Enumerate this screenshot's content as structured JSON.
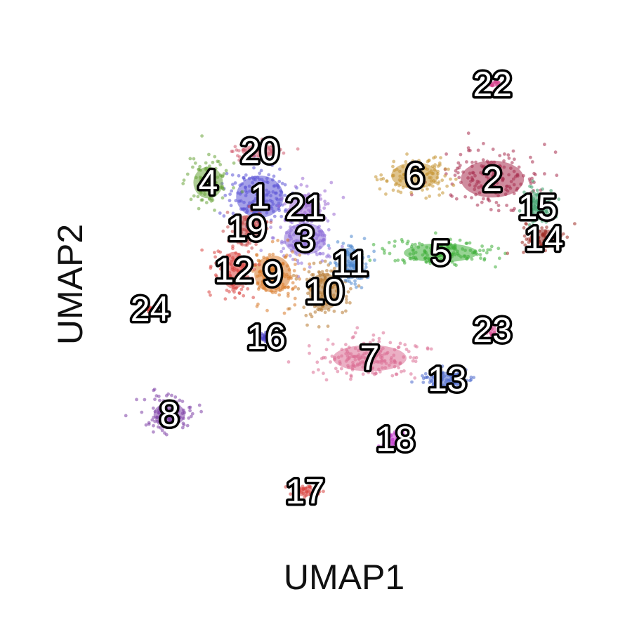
{
  "chart_data": {
    "type": "scatter",
    "xlabel": "UMAP1",
    "ylabel": "UMAP2",
    "grid": false,
    "legend": "none",
    "clusters": [
      {
        "label": "1",
        "x": 3.5,
        "y": 6.4,
        "color": "#5B54D6"
      },
      {
        "label": "2",
        "x": 7.1,
        "y": 6.65,
        "color": "#A82E4E"
      },
      {
        "label": "3",
        "x": 4.2,
        "y": 5.8,
        "color": "#8E6FD8"
      },
      {
        "label": "4",
        "x": 2.7,
        "y": 6.6,
        "color": "#6AA43A"
      },
      {
        "label": "5",
        "x": 6.3,
        "y": 5.6,
        "color": "#3FAE3A"
      },
      {
        "label": "6",
        "x": 5.9,
        "y": 6.7,
        "color": "#C49431"
      },
      {
        "label": "7",
        "x": 5.2,
        "y": 4.1,
        "color": "#DB6E93"
      },
      {
        "label": "8",
        "x": 2.1,
        "y": 3.3,
        "color": "#7E3FA6"
      },
      {
        "label": "9",
        "x": 3.7,
        "y": 5.3,
        "color": "#D97A2A"
      },
      {
        "label": "10",
        "x": 4.5,
        "y": 5.05,
        "color": "#B7792F"
      },
      {
        "label": "11",
        "x": 4.9,
        "y": 5.45,
        "color": "#4C86CE"
      },
      {
        "label": "12",
        "x": 3.1,
        "y": 5.35,
        "color": "#D9443F"
      },
      {
        "label": "13",
        "x": 6.4,
        "y": 3.8,
        "color": "#4A68CC"
      },
      {
        "label": "14",
        "x": 7.9,
        "y": 5.8,
        "color": "#9E2B24"
      },
      {
        "label": "15",
        "x": 7.8,
        "y": 6.25,
        "color": "#3B9E6A"
      },
      {
        "label": "16",
        "x": 3.6,
        "y": 4.4,
        "color": "#4B3FC4"
      },
      {
        "label": "17",
        "x": 4.2,
        "y": 2.2,
        "color": "#D9443F"
      },
      {
        "label": "18",
        "x": 5.6,
        "y": 2.95,
        "color": "#C43FD0"
      },
      {
        "label": "19",
        "x": 3.3,
        "y": 5.95,
        "color": "#C44A4A"
      },
      {
        "label": "20",
        "x": 3.5,
        "y": 7.05,
        "color": "#D05A6E"
      },
      {
        "label": "21",
        "x": 4.2,
        "y": 6.25,
        "color": "#9B6AD1"
      },
      {
        "label": "22",
        "x": 7.1,
        "y": 8.0,
        "color": "#D63F8A"
      },
      {
        "label": "23",
        "x": 7.1,
        "y": 4.5,
        "color": "#D63F8A"
      },
      {
        "label": "24",
        "x": 1.8,
        "y": 4.8,
        "color": "#D9443F"
      }
    ]
  }
}
